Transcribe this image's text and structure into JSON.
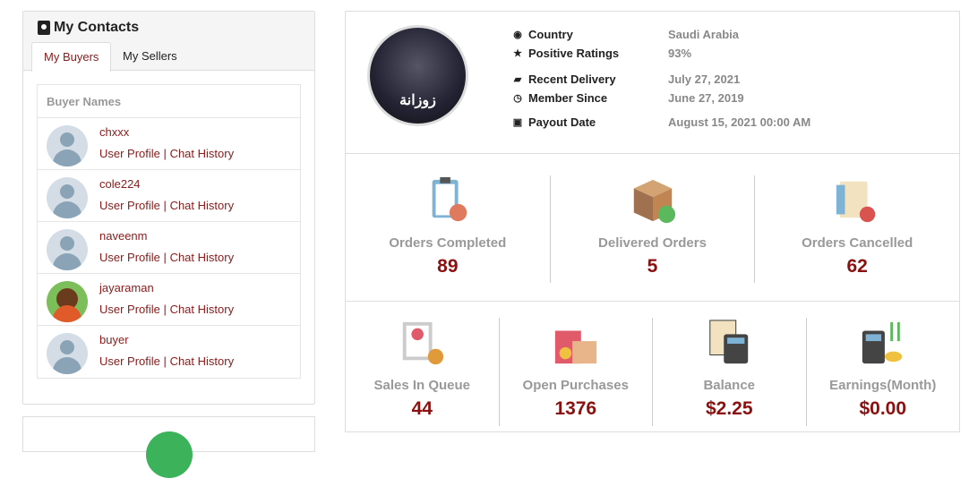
{
  "contacts": {
    "title": "My Contacts",
    "tabs": [
      "My Buyers",
      "My Sellers"
    ],
    "list_header": "Buyer Names",
    "buyers": [
      {
        "name": "chxxx",
        "profile": "User Profile",
        "sep": "|",
        "chat": "Chat History"
      },
      {
        "name": "cole224",
        "profile": "User Profile",
        "sep": "|",
        "chat": "Chat History"
      },
      {
        "name": "naveenm",
        "profile": "User Profile",
        "sep": "|",
        "chat": "Chat History"
      },
      {
        "name": "jayaraman",
        "profile": "User Profile",
        "sep": "|",
        "chat": "Chat History"
      },
      {
        "name": "buyer",
        "profile": "User Profile",
        "sep": "|",
        "chat": "Chat History"
      }
    ]
  },
  "profile": {
    "avatar_text": "زوزانة",
    "rows": [
      {
        "icon": "globe-icon",
        "label": "Country",
        "value": "Saudi Arabia"
      },
      {
        "icon": "star-icon",
        "label": "Positive Ratings",
        "value": "93%"
      },
      {
        "icon": "truck-icon",
        "label": "Recent Delivery",
        "value": "July 27, 2021"
      },
      {
        "icon": "clock-icon",
        "label": "Member Since",
        "value": "June 27, 2019"
      },
      {
        "icon": "money-icon",
        "label": "Payout Date",
        "value": "August 15, 2021 00:00 AM"
      }
    ]
  },
  "stats_top": [
    {
      "icon": "clipboard-check-icon",
      "label": "Orders Completed",
      "value": "89"
    },
    {
      "icon": "package-check-icon",
      "label": "Delivered Orders",
      "value": "5"
    },
    {
      "icon": "document-cancel-icon",
      "label": "Orders Cancelled",
      "value": "62"
    }
  ],
  "stats_bottom": [
    {
      "icon": "invoice-moneybag-icon",
      "label": "Sales In Queue",
      "value": "44"
    },
    {
      "icon": "shopping-bags-icon",
      "label": "Open Purchases",
      "value": "1376"
    },
    {
      "icon": "calculator-icon",
      "label": "Balance",
      "value": "$2.25"
    },
    {
      "icon": "calculator-coins-icon",
      "label": "Earnings(Month)",
      "value": "$0.00"
    }
  ],
  "colors": {
    "accent": "#8b1a1a",
    "value": "#8b1010",
    "muted": "#999999"
  }
}
